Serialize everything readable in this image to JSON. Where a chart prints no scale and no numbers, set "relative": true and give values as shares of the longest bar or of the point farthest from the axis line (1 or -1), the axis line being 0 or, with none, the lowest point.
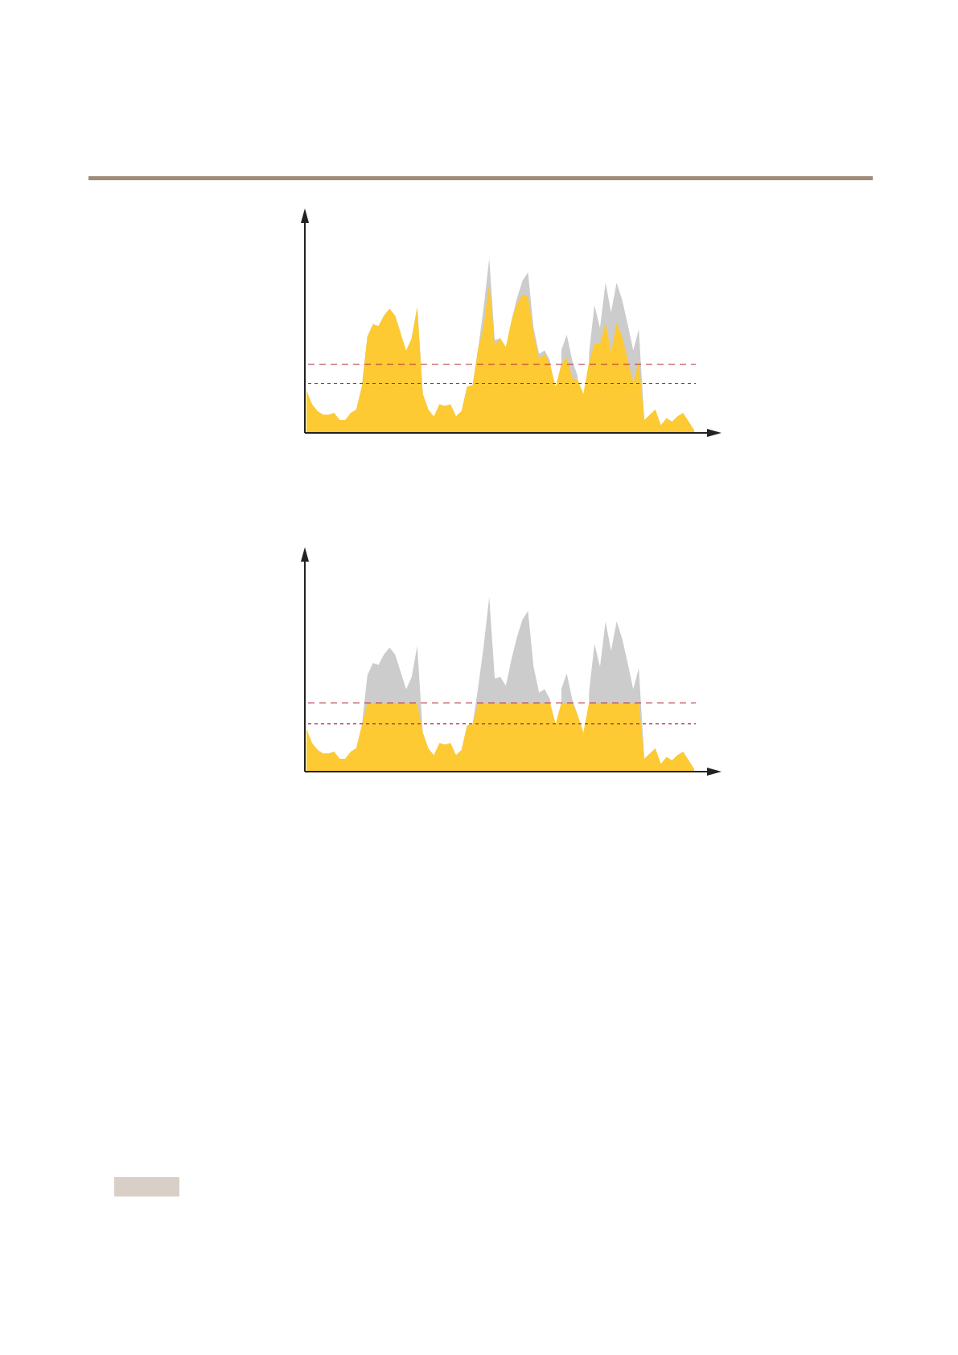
{
  "chart_data": [
    {
      "type": "area",
      "relative": true,
      "legend": false,
      "grid": false,
      "marker": "none",
      "categories": [
        null,
        null,
        null,
        null,
        null,
        null,
        null,
        null,
        null,
        null,
        null,
        null,
        null,
        null,
        null,
        null,
        null,
        null,
        null,
        null,
        null,
        null,
        null,
        null,
        null,
        null,
        null,
        null,
        null,
        null,
        null,
        null,
        null,
        null,
        null,
        null,
        null,
        null,
        null,
        null,
        null,
        null,
        null,
        null,
        null,
        null,
        null,
        null,
        null,
        null,
        null,
        null,
        null,
        null,
        null,
        null,
        null,
        null,
        null,
        null,
        null,
        null,
        null,
        null,
        null,
        null,
        null,
        null,
        null,
        null,
        null
      ],
      "series": [
        {
          "color": "#cccccc",
          "values": [
            0.24,
            0.16,
            0.12,
            0.1,
            0.1,
            0.11,
            0.07,
            0.07,
            0.11,
            0.13,
            0.26,
            0.55,
            0.62,
            0.61,
            0.67,
            0.71,
            0.67,
            0.57,
            null,
            0.54,
            0.72,
            0.22,
            0.13,
            null,
            0.16,
            0.15,
            0.16,
            0.09,
            0.12,
            0.26,
            0.27,
            0.48,
            0.72,
            1.0,
            0.53,
            0.54,
            null,
            0.64,
            0.77,
            0.87,
            0.92,
            0.6,
            0.45,
            0.47,
            0.41,
            null,
            0.47,
            0.56,
            0.41,
            0.32,
            null,
            0.45,
            0.73,
            0.6,
            0.86,
            0.69,
            0.86,
            0.76,
            0.62,
            0.47,
            0.59,
            0.07,
            0.1,
            0.13,
            null,
            0.08,
            0.06,
            0.09,
            0.11,
            0.06,
            0.01
          ]
        },
        {
          "color": "#fdca33",
          "values": [
            0.24,
            0.16,
            0.12,
            0.1,
            0.1,
            0.11,
            0.07,
            0.07,
            0.11,
            0.13,
            0.26,
            0.55,
            0.62,
            0.61,
            0.67,
            0.71,
            0.67,
            0.57,
            0.47,
            0.54,
            0.72,
            0.22,
            0.13,
            0.09,
            0.16,
            0.15,
            0.16,
            0.09,
            0.12,
            0.26,
            0.27,
            0.48,
            0.61,
            0.86,
            0.5,
            0.54,
            0.49,
            0.64,
            0.74,
            0.79,
            0.78,
            0.57,
            0.42,
            0.45,
            0.39,
            0.26,
            0.39,
            0.43,
            0.31,
            0.3,
            0.22,
            0.4,
            0.51,
            0.51,
            0.63,
            0.46,
            0.63,
            0.55,
            0.42,
            0.28,
            0.41,
            0.07,
            0.1,
            0.13,
            0.04,
            0.08,
            0.06,
            0.09,
            0.11,
            0.06,
            0.01
          ]
        }
      ],
      "ref_lines": [
        {
          "axis": "y",
          "value": 0.39,
          "color": "#b5273a",
          "line_style": "dashed"
        },
        {
          "axis": "y",
          "value": 0.28,
          "color": "#b5273a",
          "line_style": "dotted"
        }
      ]
    },
    {
      "type": "area",
      "relative": true,
      "legend": false,
      "grid": false,
      "marker": "none",
      "categories": [
        null,
        null,
        null,
        null,
        null,
        null,
        null,
        null,
        null,
        null,
        null,
        null,
        null,
        null,
        null,
        null,
        null,
        null,
        null,
        null,
        null,
        null,
        null,
        null,
        null,
        null,
        null,
        null,
        null,
        null,
        null,
        null,
        null,
        null,
        null,
        null,
        null,
        null,
        null,
        null,
        null,
        null,
        null,
        null,
        null,
        null,
        null,
        null,
        null,
        null,
        null,
        null,
        null,
        null,
        null,
        null,
        null,
        null,
        null,
        null,
        null,
        null,
        null,
        null,
        null,
        null,
        null,
        null,
        null,
        null,
        null
      ],
      "series": [
        {
          "color": "#cccccc",
          "values": [
            0.24,
            0.16,
            0.12,
            0.1,
            0.1,
            0.11,
            0.07,
            0.07,
            0.11,
            0.13,
            0.26,
            0.55,
            0.62,
            0.61,
            0.67,
            0.71,
            0.67,
            0.57,
            0.47,
            0.54,
            0.72,
            0.22,
            0.13,
            null,
            0.16,
            0.15,
            0.16,
            0.09,
            0.12,
            0.26,
            0.27,
            0.48,
            0.72,
            1.0,
            0.53,
            0.54,
            0.49,
            0.64,
            0.77,
            0.87,
            0.92,
            0.6,
            0.45,
            0.47,
            0.41,
            null,
            0.47,
            0.56,
            0.41,
            0.32,
            null,
            0.45,
            0.73,
            0.6,
            0.86,
            0.69,
            0.86,
            0.76,
            0.62,
            0.47,
            0.59,
            0.07,
            0.1,
            0.13,
            null,
            0.08,
            0.06,
            0.09,
            0.11,
            0.06,
            0.01
          ]
        },
        {
          "color": "#fdca33",
          "values": [
            0.24,
            0.16,
            0.12,
            0.1,
            0.1,
            0.11,
            0.07,
            0.07,
            0.11,
            0.13,
            0.26,
            0.39,
            0.39,
            0.39,
            0.39,
            0.39,
            0.39,
            0.39,
            0.39,
            0.39,
            0.39,
            0.22,
            0.13,
            0.09,
            0.16,
            0.15,
            0.16,
            0.09,
            0.12,
            0.26,
            0.27,
            0.39,
            0.39,
            0.39,
            0.39,
            0.39,
            0.39,
            0.39,
            0.39,
            0.39,
            0.39,
            0.39,
            0.39,
            0.39,
            0.39,
            0.27,
            0.39,
            0.39,
            0.39,
            0.32,
            0.22,
            0.39,
            0.39,
            0.39,
            0.39,
            0.39,
            0.39,
            0.39,
            0.39,
            0.39,
            0.39,
            0.07,
            0.1,
            0.13,
            0.04,
            0.08,
            0.06,
            0.09,
            0.11,
            0.06,
            0.01
          ]
        }
      ],
      "ref_lines": [
        {
          "axis": "y",
          "value": 0.39,
          "color": "#b5273a",
          "line_style": "dashed"
        },
        {
          "axis": "y",
          "value": 0.27,
          "color": "#b5273a",
          "line_style": "dotted"
        }
      ]
    }
  ]
}
